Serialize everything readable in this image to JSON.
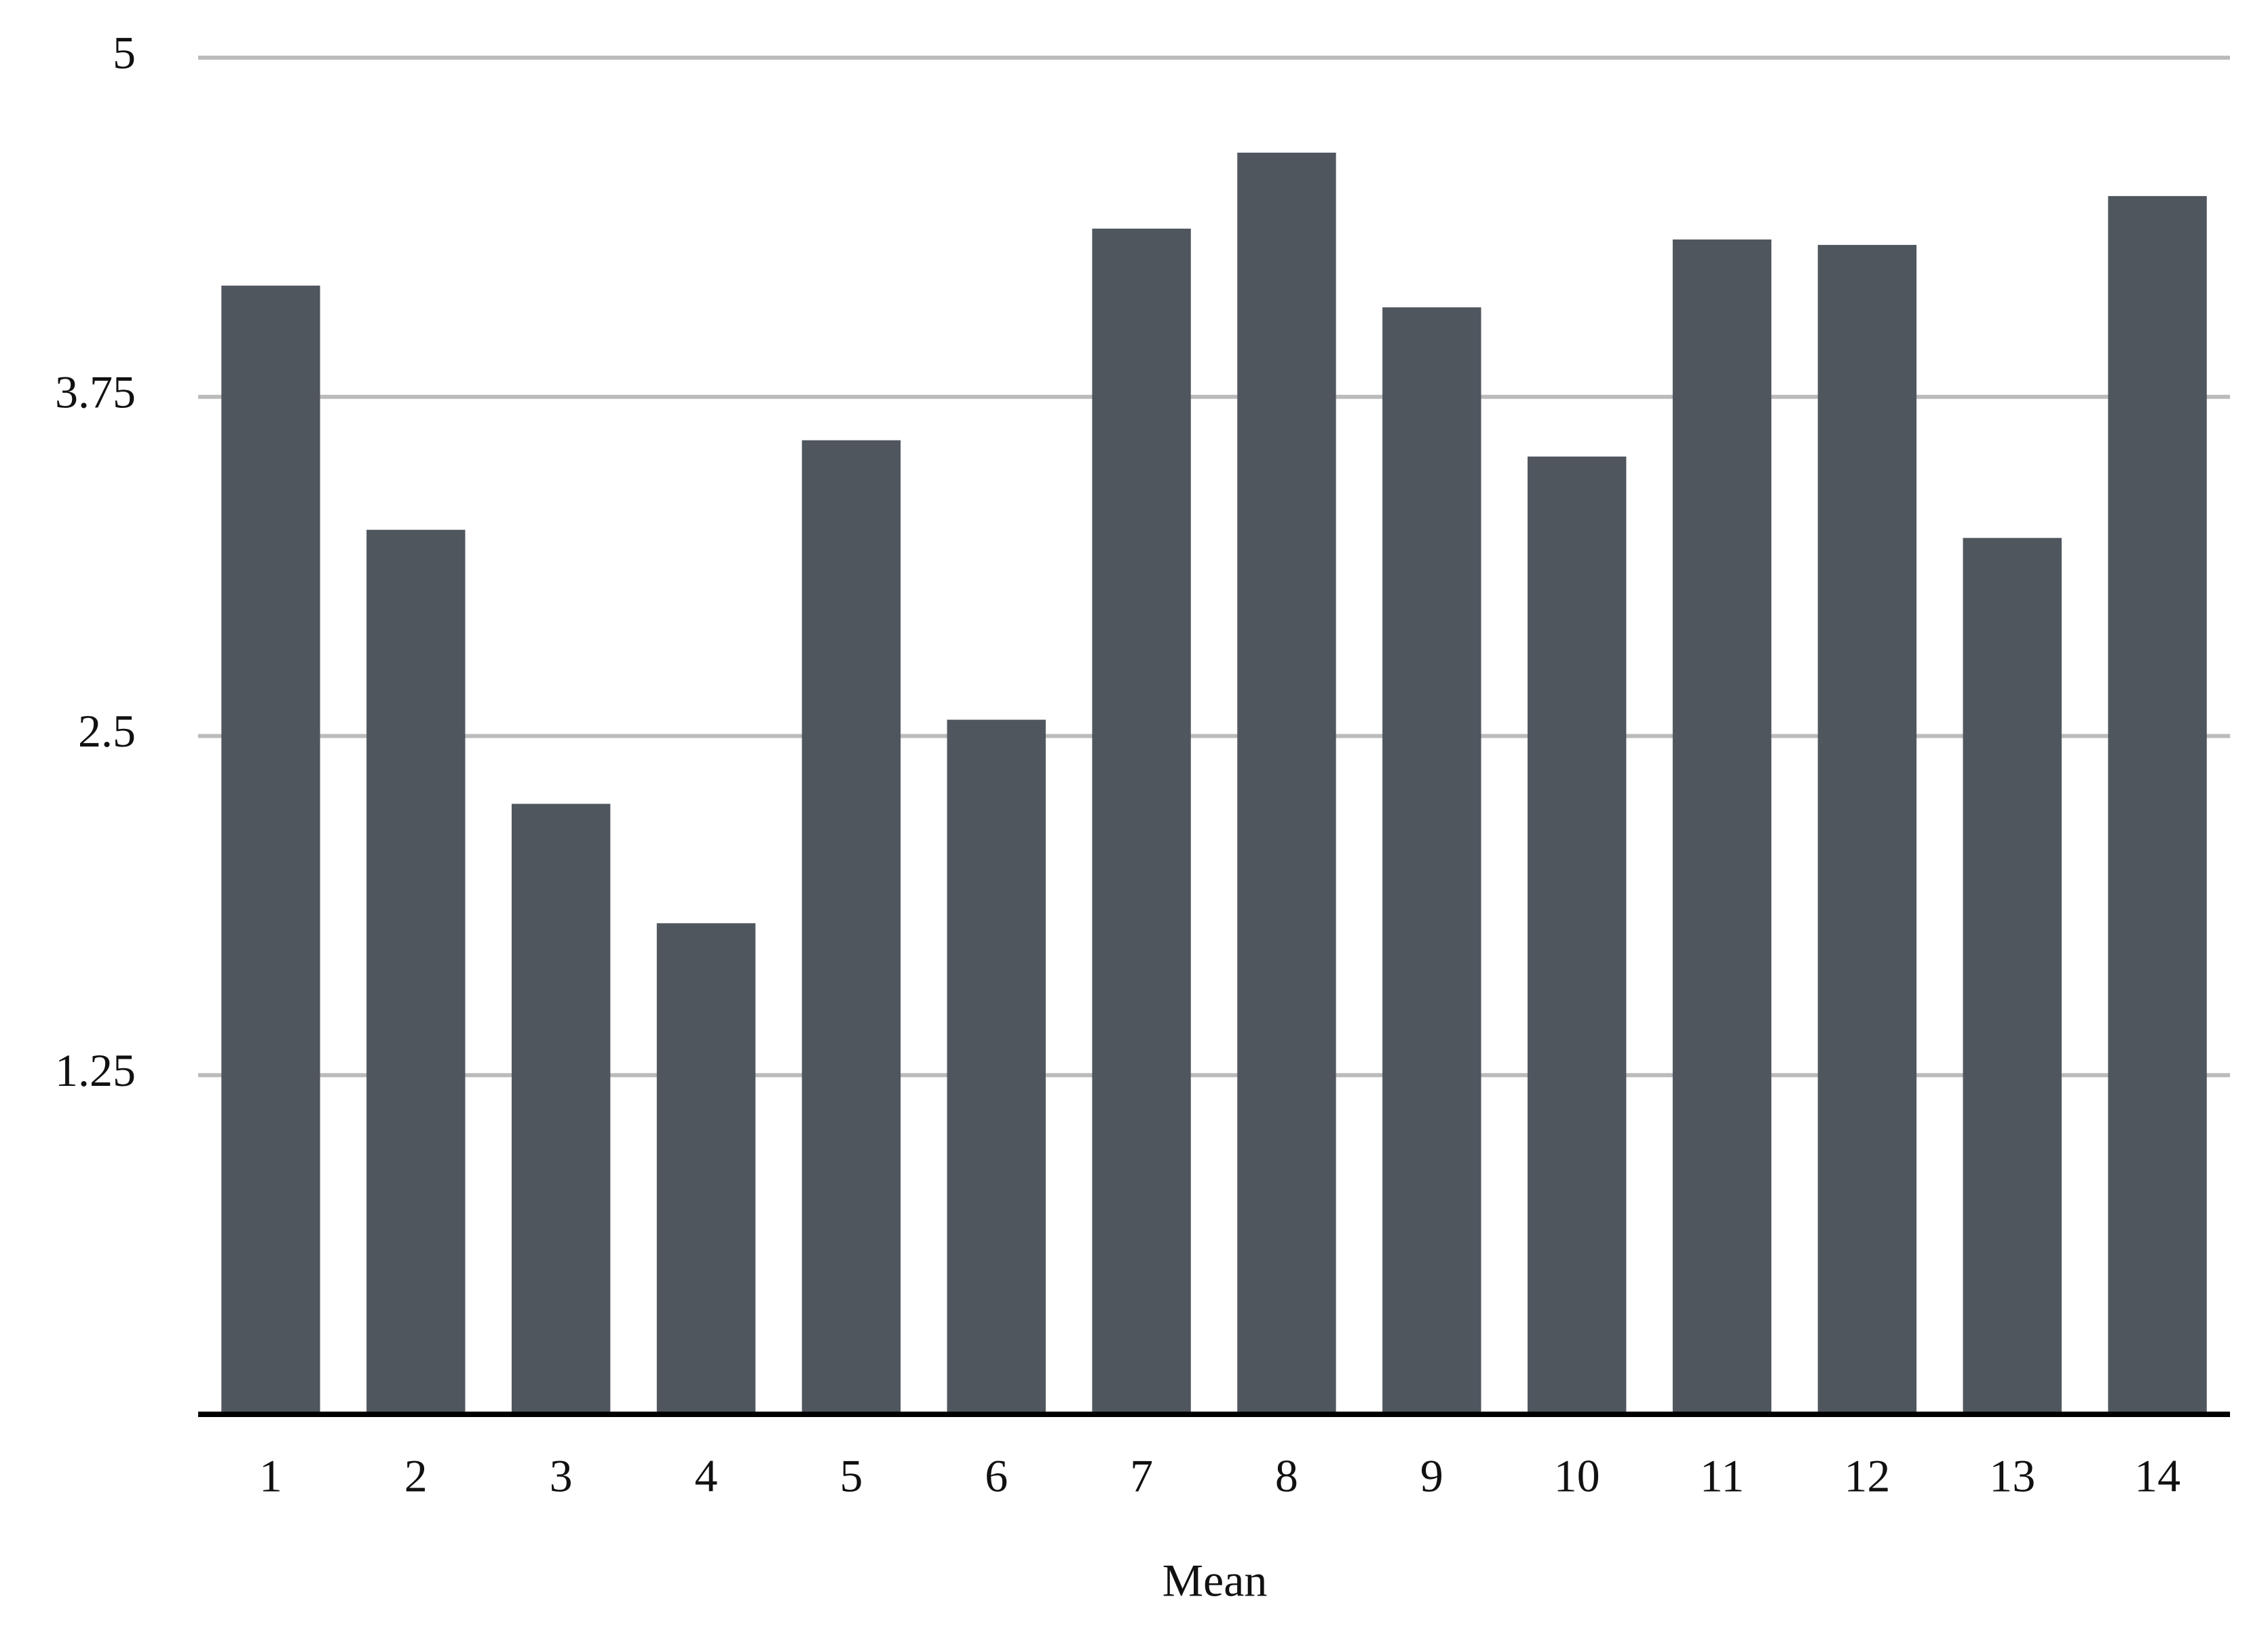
{
  "chart_data": {
    "type": "bar",
    "x_label": "Mean",
    "categories": [
      "1",
      "2",
      "3",
      "4",
      "5",
      "6",
      "7",
      "8",
      "9",
      "10",
      "11",
      "12",
      "13",
      "14"
    ],
    "values": [
      4.16,
      3.26,
      2.25,
      1.81,
      3.59,
      2.56,
      4.37,
      4.65,
      4.08,
      3.53,
      4.33,
      4.31,
      3.23,
      4.49
    ],
    "color": "#50565e",
    "ylim": [
      0,
      5
    ],
    "yticks": [
      1.25,
      2.5,
      3.75,
      5
    ],
    "grid": true
  }
}
